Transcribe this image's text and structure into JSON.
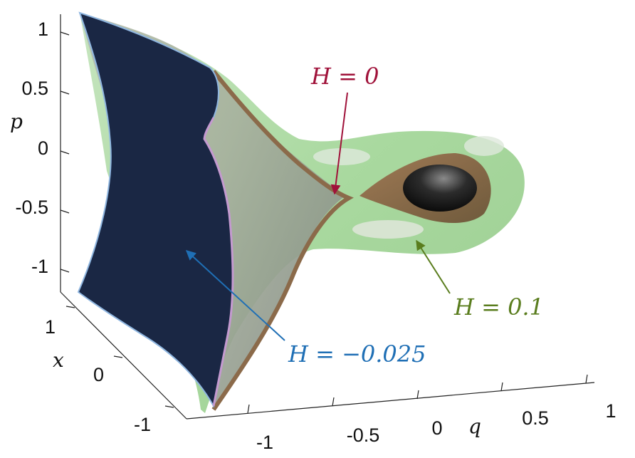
{
  "chart_data": {
    "type": "surface-3d",
    "title": "",
    "axes": {
      "q": {
        "label": "q",
        "ticks": [
          "-1",
          "-0.5",
          "0",
          "0.5",
          "1"
        ]
      },
      "x": {
        "label": "x",
        "ticks": [
          "1",
          "0",
          "-1"
        ]
      },
      "p": {
        "label": "p",
        "ticks": [
          "1",
          "0.5",
          "0",
          "-0.5",
          "-1"
        ]
      }
    },
    "surfaces": [
      {
        "name": "H = -0.025",
        "H": -0.025,
        "color": "#1a2744"
      },
      {
        "name": "H = 0",
        "H": 0,
        "color": "#8b6a4a"
      },
      {
        "name": "H = 0.1",
        "H": 0.1,
        "color": "#a8d8a0"
      }
    ],
    "annotations": [
      {
        "id": "h0",
        "text": "H = 0",
        "color": "#a0123a"
      },
      {
        "id": "h01",
        "text": "H = 0.1",
        "color": "#5a7d1e"
      },
      {
        "id": "hneg",
        "text": "H = −0.025",
        "color": "#1f6fb5"
      }
    ]
  }
}
